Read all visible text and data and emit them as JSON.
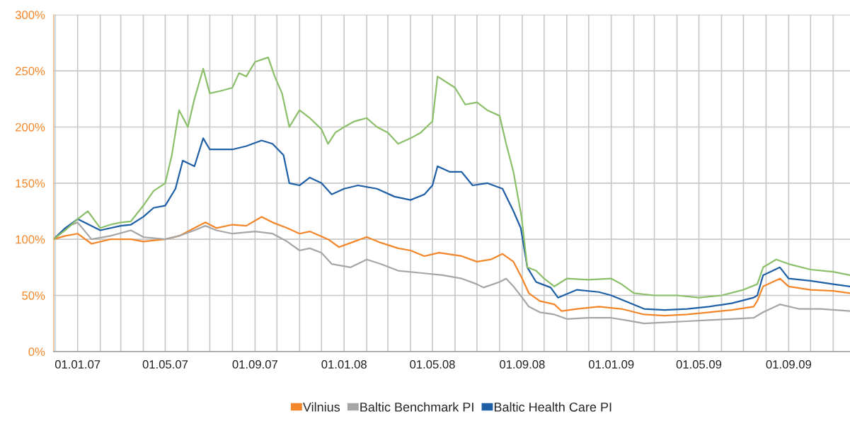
{
  "chart_data": {
    "type": "line",
    "xlim": [
      "2006-11-29",
      "2009-11-24"
    ],
    "xticks": [
      {
        "value": "2006-12-01",
        "label": null
      },
      {
        "value": "2007-01-01",
        "label": "01.01.07"
      },
      {
        "value": "2007-02-01",
        "label": null
      },
      {
        "value": "2007-03-01",
        "label": null
      },
      {
        "value": "2007-04-01",
        "label": null
      },
      {
        "value": "2007-05-01",
        "label": "01.05.07"
      },
      {
        "value": "2007-06-01",
        "label": null
      },
      {
        "value": "2007-07-01",
        "label": null
      },
      {
        "value": "2007-08-01",
        "label": null
      },
      {
        "value": "2007-09-01",
        "label": "01.09.07"
      },
      {
        "value": "2007-10-01",
        "label": null
      },
      {
        "value": "2007-11-01",
        "label": null
      },
      {
        "value": "2007-12-01",
        "label": null
      },
      {
        "value": "2008-01-01",
        "label": "01.01.08"
      },
      {
        "value": "2008-02-01",
        "label": null
      },
      {
        "value": "2008-03-01",
        "label": null
      },
      {
        "value": "2008-04-01",
        "label": null
      },
      {
        "value": "2008-05-01",
        "label": "01.05.08"
      },
      {
        "value": "2008-06-01",
        "label": null
      },
      {
        "value": "2008-07-01",
        "label": null
      },
      {
        "value": "2008-08-01",
        "label": null
      },
      {
        "value": "2008-09-01",
        "label": "01.09.08"
      },
      {
        "value": "2008-10-01",
        "label": null
      },
      {
        "value": "2008-11-01",
        "label": null
      },
      {
        "value": "2008-12-01",
        "label": null
      },
      {
        "value": "2009-01-01",
        "label": "01.01.09"
      },
      {
        "value": "2009-02-01",
        "label": null
      },
      {
        "value": "2009-03-01",
        "label": null
      },
      {
        "value": "2009-04-01",
        "label": null
      },
      {
        "value": "2009-05-01",
        "label": "01.05.09"
      },
      {
        "value": "2009-06-01",
        "label": null
      },
      {
        "value": "2009-07-01",
        "label": null
      },
      {
        "value": "2009-08-01",
        "label": null
      },
      {
        "value": "2009-09-01",
        "label": "01.09.09"
      },
      {
        "value": "2009-10-01",
        "label": null
      },
      {
        "value": "2009-11-01",
        "label": null
      }
    ],
    "ylim": [
      0,
      300
    ],
    "yticks": [
      {
        "value": 0,
        "label": "0%"
      },
      {
        "value": 50,
        "label": "50%"
      },
      {
        "value": 100,
        "label": "100%"
      },
      {
        "value": 150,
        "label": "150%"
      },
      {
        "value": 200,
        "label": "200%"
      },
      {
        "value": 250,
        "label": "250%"
      },
      {
        "value": 300,
        "label": "300%"
      }
    ],
    "grid": true,
    "legend": "bottom",
    "marker": "none",
    "line_style": "solid",
    "series": [
      {
        "name": "Vilnius",
        "color": "#f4862a",
        "x": [
          "2006-11-29",
          "2006-12-15",
          "2007-01-01",
          "2007-01-20",
          "2007-02-15",
          "2007-03-15",
          "2007-04-01",
          "2007-05-01",
          "2007-05-20",
          "2007-06-10",
          "2007-06-25",
          "2007-07-10",
          "2007-08-01",
          "2007-08-20",
          "2007-09-10",
          "2007-09-25",
          "2007-10-15",
          "2007-11-01",
          "2007-11-15",
          "2007-12-10",
          "2007-12-25",
          "2008-01-15",
          "2008-02-01",
          "2008-02-20",
          "2008-03-15",
          "2008-04-01",
          "2008-04-20",
          "2008-05-10",
          "2008-06-10",
          "2008-07-01",
          "2008-07-20",
          "2008-08-05",
          "2008-08-20",
          "2008-09-01",
          "2008-09-10",
          "2008-09-25",
          "2008-10-15",
          "2008-10-25",
          "2008-11-15",
          "2008-12-15",
          "2009-01-15",
          "2009-02-15",
          "2009-03-15",
          "2009-04-15",
          "2009-05-15",
          "2009-06-15",
          "2009-07-15",
          "2009-07-20",
          "2009-07-28",
          "2009-08-20",
          "2009-09-01",
          "2009-10-01",
          "2009-11-01",
          "2009-11-24"
        ],
        "values": [
          100,
          103,
          105,
          96,
          100,
          100,
          98,
          100,
          103,
          110,
          115,
          110,
          113,
          112,
          120,
          115,
          110,
          105,
          107,
          100,
          93,
          98,
          102,
          97,
          92,
          90,
          85,
          88,
          85,
          80,
          82,
          87,
          80,
          65,
          52,
          45,
          42,
          36,
          38,
          40,
          38,
          33,
          32,
          33,
          35,
          37,
          40,
          45,
          58,
          65,
          58,
          55,
          54,
          52
        ]
      },
      {
        "name": "Baltic Benchmark PI",
        "color": "#a6a6a6",
        "x": [
          "2006-11-29",
          "2006-12-20",
          "2007-01-01",
          "2007-01-20",
          "2007-02-15",
          "2007-03-15",
          "2007-04-01",
          "2007-05-01",
          "2007-05-20",
          "2007-06-10",
          "2007-06-25",
          "2007-07-10",
          "2007-08-01",
          "2007-09-01",
          "2007-09-25",
          "2007-10-15",
          "2007-11-01",
          "2007-11-15",
          "2007-12-01",
          "2007-12-15",
          "2008-01-10",
          "2008-02-01",
          "2008-02-20",
          "2008-03-15",
          "2008-04-15",
          "2008-05-15",
          "2008-06-10",
          "2008-07-01",
          "2008-07-10",
          "2008-08-01",
          "2008-08-10",
          "2008-08-20",
          "2008-09-01",
          "2008-09-10",
          "2008-09-25",
          "2008-10-15",
          "2008-11-01",
          "2008-12-01",
          "2009-01-01",
          "2009-01-20",
          "2009-02-15",
          "2009-03-15",
          "2009-04-15",
          "2009-05-15",
          "2009-06-15",
          "2009-07-15",
          "2009-07-28",
          "2009-08-20",
          "2009-09-15",
          "2009-10-15",
          "2009-11-24"
        ],
        "values": [
          100,
          112,
          115,
          100,
          103,
          108,
          102,
          100,
          103,
          108,
          112,
          108,
          105,
          107,
          105,
          98,
          90,
          92,
          88,
          78,
          75,
          82,
          78,
          72,
          70,
          68,
          65,
          60,
          57,
          62,
          65,
          58,
          48,
          40,
          35,
          33,
          29,
          30,
          30,
          28,
          25,
          26,
          27,
          28,
          29,
          30,
          35,
          42,
          38,
          38,
          36
        ]
      },
      {
        "name": "Baltic Health Care PI",
        "color": "#1f5fa6",
        "x": [
          "2006-11-29",
          "2006-12-15",
          "2007-01-01",
          "2007-02-01",
          "2007-03-01",
          "2007-03-15",
          "2007-04-01",
          "2007-04-15",
          "2007-05-01",
          "2007-05-15",
          "2007-05-25",
          "2007-06-10",
          "2007-06-22",
          "2007-07-01",
          "2007-08-01",
          "2007-08-20",
          "2007-09-10",
          "2007-09-25",
          "2007-10-10",
          "2007-10-18",
          "2007-11-01",
          "2007-11-15",
          "2007-12-01",
          "2007-12-15",
          "2008-01-01",
          "2008-01-20",
          "2008-02-15",
          "2008-03-10",
          "2008-04-01",
          "2008-04-20",
          "2008-05-01",
          "2008-05-08",
          "2008-05-25",
          "2008-06-10",
          "2008-06-25",
          "2008-07-15",
          "2008-08-05",
          "2008-08-20",
          "2008-08-30",
          "2008-09-08",
          "2008-09-20",
          "2008-10-10",
          "2008-10-20",
          "2008-11-15",
          "2008-12-15",
          "2009-01-01",
          "2009-01-20",
          "2009-02-15",
          "2009-03-15",
          "2009-04-15",
          "2009-05-15",
          "2009-06-15",
          "2009-07-15",
          "2009-07-20",
          "2009-07-28",
          "2009-08-20",
          "2009-09-01",
          "2009-10-01",
          "2009-11-01",
          "2009-11-24"
        ],
        "values": [
          100,
          110,
          118,
          108,
          112,
          113,
          120,
          128,
          130,
          145,
          170,
          165,
          190,
          180,
          180,
          183,
          188,
          185,
          175,
          150,
          148,
          155,
          150,
          140,
          145,
          148,
          145,
          138,
          135,
          140,
          148,
          165,
          160,
          160,
          148,
          150,
          145,
          125,
          110,
          75,
          62,
          57,
          48,
          55,
          53,
          50,
          45,
          38,
          37,
          38,
          40,
          43,
          48,
          50,
          68,
          75,
          65,
          63,
          60,
          58
        ]
      },
      {
        "color": "#8cbf6a",
        "x": [
          "2006-11-29",
          "2006-12-15",
          "2007-01-01",
          "2007-01-15",
          "2007-02-01",
          "2007-02-15",
          "2007-03-01",
          "2007-03-15",
          "2007-04-01",
          "2007-04-15",
          "2007-05-01",
          "2007-05-10",
          "2007-05-20",
          "2007-06-01",
          "2007-06-10",
          "2007-06-22",
          "2007-07-01",
          "2007-07-15",
          "2007-08-01",
          "2007-08-10",
          "2007-08-20",
          "2007-09-01",
          "2007-09-19",
          "2007-09-28",
          "2007-10-08",
          "2007-10-18",
          "2007-11-01",
          "2007-11-15",
          "2007-12-01",
          "2007-12-10",
          "2007-12-20",
          "2008-01-01",
          "2008-01-15",
          "2008-02-01",
          "2008-02-15",
          "2008-03-01",
          "2008-03-15",
          "2008-04-01",
          "2008-04-15",
          "2008-05-01",
          "2008-05-08",
          "2008-05-20",
          "2008-06-01",
          "2008-06-15",
          "2008-07-01",
          "2008-07-15",
          "2008-08-01",
          "2008-08-10",
          "2008-08-20",
          "2008-08-31",
          "2008-09-08",
          "2008-09-20",
          "2008-10-01",
          "2008-10-15",
          "2008-11-01",
          "2008-12-01",
          "2009-01-01",
          "2009-01-15",
          "2009-02-01",
          "2009-03-01",
          "2009-04-01",
          "2009-05-01",
          "2009-06-01",
          "2009-07-01",
          "2009-07-20",
          "2009-07-28",
          "2009-08-15",
          "2009-09-01",
          "2009-10-01",
          "2009-11-01",
          "2009-11-24"
        ],
        "values": [
          100,
          108,
          118,
          125,
          110,
          113,
          115,
          116,
          130,
          143,
          150,
          175,
          215,
          200,
          225,
          252,
          230,
          232,
          235,
          248,
          245,
          258,
          262,
          245,
          230,
          200,
          215,
          208,
          198,
          185,
          195,
          200,
          205,
          208,
          200,
          195,
          185,
          190,
          195,
          205,
          245,
          240,
          235,
          220,
          222,
          215,
          210,
          185,
          160,
          120,
          75,
          72,
          65,
          58,
          65,
          64,
          65,
          60,
          52,
          50,
          50,
          48,
          50,
          55,
          60,
          75,
          82,
          78,
          73,
          71,
          68
        ]
      }
    ]
  }
}
